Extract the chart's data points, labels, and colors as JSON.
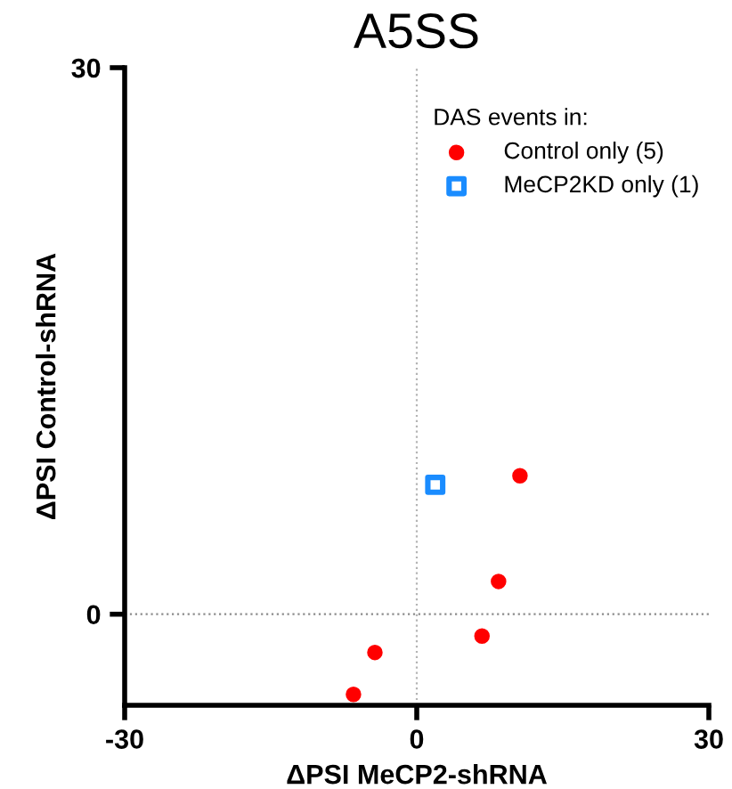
{
  "chart_data": {
    "type": "scatter",
    "title": "A5SS",
    "xlabel": "ΔPSI MeCP2-shRNA",
    "ylabel": "ΔPSI Control-shRNA",
    "legend_title": "DAS events in:",
    "xlim": [
      -30,
      30
    ],
    "xticks": [
      -30,
      0,
      30
    ],
    "ylim": [
      -5,
      30
    ],
    "yticks": [
      0,
      30
    ],
    "grid": false,
    "legend": "top right",
    "ref_lines": [
      {
        "axis": "x",
        "value": 0,
        "color": "#b4b4b4",
        "line_style": "dotted"
      },
      {
        "axis": "y",
        "value": 0,
        "color": "#8c8c8c",
        "line_style": "dotted"
      }
    ],
    "series": [
      {
        "name": "Control only (5)",
        "color": "#ff0000",
        "marker": "circle",
        "x": [
          10.6,
          8.4,
          6.7,
          -4.3,
          -6.5
        ],
        "values": [
          7.6,
          1.8,
          -1.2,
          -2.1,
          -4.4
        ]
      },
      {
        "name": "MeCP2KD only (1)",
        "color": "#1a8cff",
        "marker": "square",
        "x": [
          1.9
        ],
        "values": [
          7.1
        ]
      }
    ]
  }
}
